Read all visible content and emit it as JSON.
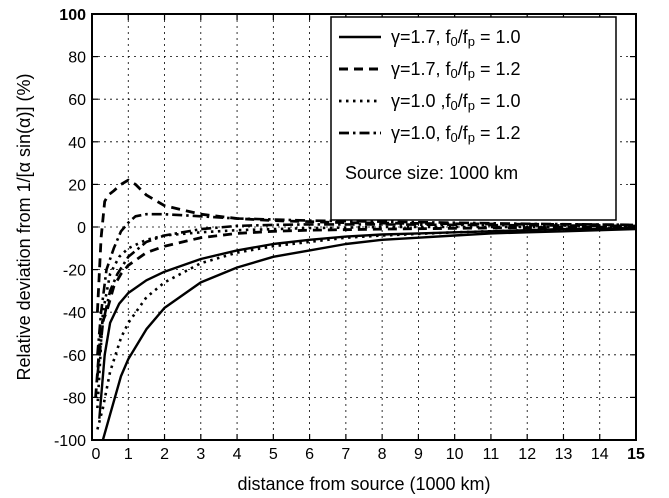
{
  "chart_data": {
    "type": "line",
    "xlabel": "distance from source (1000 km)",
    "ylabel": "Relative deviation from 1/[α sin(α)]  (%)",
    "xlim": [
      0,
      15
    ],
    "ylim": [
      -100,
      100
    ],
    "xticks": [
      "0",
      "1",
      "2",
      "3",
      "4",
      "5",
      "6",
      "7",
      "8",
      "9",
      "10",
      "11",
      "12",
      "13",
      "14",
      "15"
    ],
    "yticks": [
      "100",
      "80",
      "60",
      "40",
      "20",
      "0",
      "-20",
      "-40",
      "-60",
      "-80",
      "-100"
    ],
    "grid": true,
    "legend_position": "top-right",
    "annotation": "Source size: 1000 km",
    "series": [
      {
        "name": "γ=1.7, f0/fp = 1.0",
        "legend_parts": {
          "pre": "γ=1.7, f",
          "sub1": "0",
          "mid": "/f",
          "sub2": "p",
          "post": " = 1.0"
        },
        "style": "solid",
        "x": [
          0.3,
          0.5,
          0.8,
          1.0,
          1.5,
          2,
          3,
          4,
          5,
          6,
          7,
          8,
          9,
          10,
          11,
          12,
          13,
          14,
          15
        ],
        "y": [
          -100,
          -88,
          -70,
          -62,
          -48,
          -38,
          -26,
          -19,
          -14,
          -11,
          -8,
          -6,
          -5,
          -4,
          -3,
          -2.5,
          -2,
          -1.5,
          -1
        ]
      },
      {
        "name": "γ=1.7, f0/fp = 1.0",
        "legend_parts": null,
        "style": "solid",
        "x": [
          0.2,
          0.35,
          0.5,
          0.75,
          1.0,
          1.5,
          2,
          3,
          4,
          5,
          6,
          7,
          8,
          9,
          10,
          11,
          12,
          13,
          14,
          15
        ],
        "y": [
          -90,
          -60,
          -45,
          -36,
          -31,
          -25,
          -21,
          -15,
          -11,
          -8,
          -6,
          -4.5,
          -3.5,
          -3,
          -2.5,
          -2,
          -1.5,
          -1,
          -0.8,
          -0.5
        ]
      },
      {
        "name": "γ=1.7, f0/fp = 1.2",
        "legend_parts": {
          "pre": "γ=1.7, f",
          "sub1": "0",
          "mid": "/f",
          "sub2": "p",
          "post": " = 1.2"
        },
        "style": "dashed",
        "x": [
          0.15,
          0.25,
          0.35,
          0.45,
          0.6,
          0.8,
          1.0,
          1.2,
          1.5,
          2,
          3,
          4,
          5,
          7,
          10,
          15
        ],
        "y": [
          -40,
          -5,
          12,
          15,
          17,
          20,
          22,
          20,
          15,
          10,
          6,
          4,
          3,
          2,
          1.5,
          1
        ]
      },
      {
        "name": "γ=1.7, f0/fp = 1.2",
        "legend_parts": null,
        "style": "dashed",
        "x": [
          0.1,
          0.25,
          0.4,
          0.6,
          0.8,
          1.0,
          1.5,
          2,
          3,
          4,
          5,
          6,
          8,
          10,
          12,
          15
        ],
        "y": [
          -80,
          -46,
          -40,
          -28,
          -22,
          -18,
          -12,
          -9,
          -5,
          -3,
          -2,
          -1.5,
          -1,
          -0.6,
          -0.3,
          0
        ]
      },
      {
        "name": "γ=1.0 ,f0/fp = 1.0",
        "legend_parts": {
          "pre": "γ=1.0 ,f",
          "sub1": "0",
          "mid": "/f",
          "sub2": "p",
          "post": " = 1.0"
        },
        "style": "dotted",
        "x": [
          0.15,
          0.3,
          0.5,
          0.8,
          1.0,
          1.5,
          2,
          3,
          4,
          5,
          6,
          7,
          8,
          10,
          12,
          15
        ],
        "y": [
          -95,
          -85,
          -68,
          -52,
          -45,
          -33,
          -26,
          -17,
          -12,
          -9,
          -7,
          -5,
          -4,
          -2.5,
          -1.5,
          -0.5
        ]
      },
      {
        "name": "γ=1.0 ,f0/fp = 1.0",
        "legend_parts": null,
        "style": "dotted",
        "x": [
          0.15,
          0.3,
          0.5,
          0.75,
          1.0,
          1.5,
          2,
          3,
          4,
          5,
          6,
          8,
          10,
          12,
          15
        ],
        "y": [
          -85,
          -40,
          -22,
          -14,
          -10,
          -6,
          -4,
          -2.5,
          -1.5,
          -1,
          -0.5,
          0,
          0,
          0,
          0
        ]
      },
      {
        "name": "γ=1.0, f0/fp = 1.2",
        "legend_parts": {
          "pre": "γ=1.0, f",
          "sub1": "0",
          "mid": "/f",
          "sub2": "p",
          "post": " = 1.2"
        },
        "style": "dashdot",
        "x": [
          0.15,
          0.25,
          0.4,
          0.6,
          0.8,
          1.0,
          1.2,
          1.5,
          2,
          3,
          4,
          5,
          6,
          8,
          10,
          12,
          15
        ],
        "y": [
          -60,
          -40,
          -20,
          -10,
          -2,
          2,
          5,
          6,
          6,
          5,
          4,
          3.5,
          3,
          2.5,
          2,
          1.5,
          1
        ]
      },
      {
        "name": "γ=1.0, f0/fp = 1.2",
        "legend_parts": null,
        "style": "dashdot",
        "x": [
          0.15,
          0.3,
          0.5,
          0.7,
          1.0,
          1.5,
          2,
          3,
          4,
          5,
          6,
          8,
          10,
          12,
          15
        ],
        "y": [
          -70,
          -45,
          -30,
          -22,
          -14,
          -7,
          -4,
          -1,
          0.5,
          1,
          1.2,
          1.2,
          1,
          0.8,
          0.5
        ]
      }
    ]
  }
}
